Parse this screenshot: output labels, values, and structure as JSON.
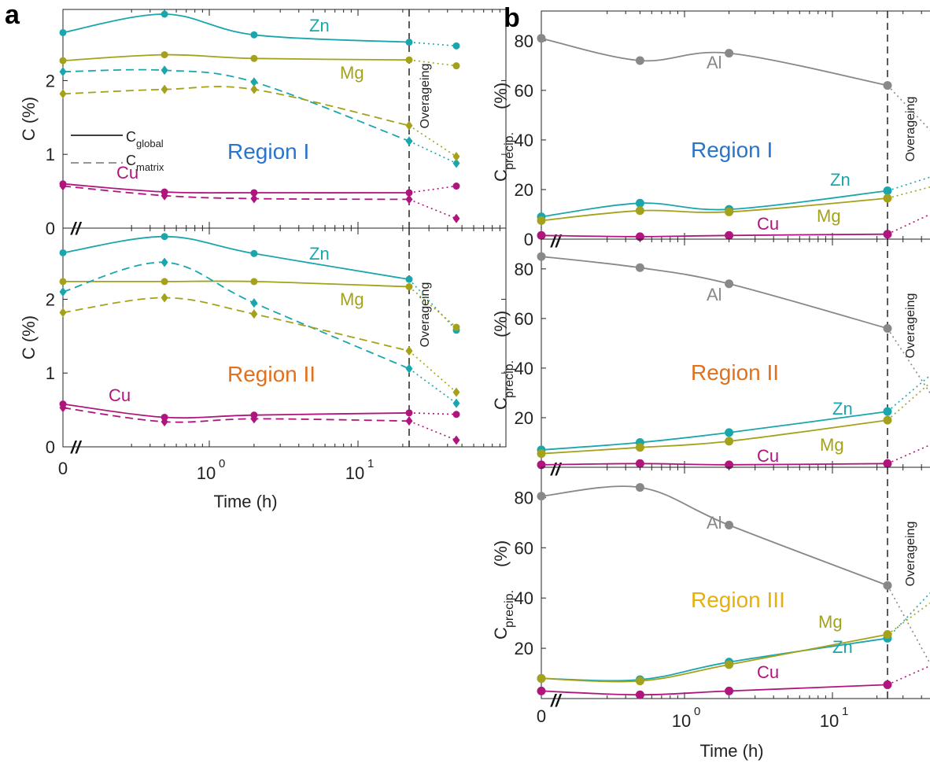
{
  "colors": {
    "Zn": "#1aa6ad",
    "Mg": "#a3a21a",
    "Cu": "#b0157d",
    "Al": "#888888",
    "region_I": "#2a74c9",
    "region_II": "#e0711e",
    "region_III": "#e8b00a"
  },
  "panel_a": {
    "letter": "a",
    "ylabel": "C (%)",
    "xlabel": "Time (h)",
    "break_mark": "//",
    "overageing_label": "Overageing",
    "legend": {
      "global": "C",
      "global_sub": "global",
      "matrix": "C",
      "matrix_sub": "matrix"
    },
    "yticks": [
      "0",
      "1",
      "2"
    ],
    "xticks": [
      "0",
      "10",
      "10"
    ],
    "xtick_sup": [
      "",
      "0",
      "1"
    ]
  },
  "panel_b": {
    "letter": "b",
    "ylabel": "C",
    "ylabel_sub": "precip.",
    "ylabel_unit": "(%)",
    "xlabel": "Time (h)",
    "break_mark": "//",
    "overageing_label": "Overageing",
    "yticks_top": [
      "0",
      "20",
      "40",
      "60",
      "80"
    ],
    "yticks": [
      "20",
      "40",
      "60",
      "80"
    ],
    "xticks": [
      "0",
      "10",
      "10"
    ],
    "xtick_sup": [
      "",
      "0",
      "1"
    ]
  },
  "chart_data": [
    {
      "id": "a-region-I",
      "type": "line",
      "region_label": "Region I",
      "region_color_key": "region_I",
      "x_scale": "symlog (0 then log10 hours)",
      "x": [
        0,
        0.5,
        2,
        24,
        48
      ],
      "ylim": [
        0,
        2.9
      ],
      "series": [
        {
          "name": "Zn",
          "kind": "global",
          "values": [
            2.65,
            2.9,
            2.62,
            2.52,
            2.47
          ]
        },
        {
          "name": "Mg",
          "kind": "global",
          "values": [
            2.27,
            2.35,
            2.3,
            2.28,
            2.2
          ]
        },
        {
          "name": "Cu",
          "kind": "global",
          "values": [
            0.6,
            0.49,
            0.48,
            0.48,
            0.57
          ]
        },
        {
          "name": "Zn",
          "kind": "matrix",
          "values": [
            2.12,
            2.14,
            1.98,
            1.18,
            0.88
          ]
        },
        {
          "name": "Mg",
          "kind": "matrix",
          "values": [
            1.82,
            1.88,
            1.88,
            1.39,
            0.97
          ]
        },
        {
          "name": "Cu",
          "kind": "matrix",
          "values": [
            0.57,
            0.44,
            0.4,
            0.39,
            0.13
          ]
        }
      ]
    },
    {
      "id": "a-region-II",
      "type": "line",
      "region_label": "Region II",
      "region_color_key": "region_II",
      "x": [
        0,
        0.5,
        2,
        24,
        48
      ],
      "ylim": [
        0,
        2.9
      ],
      "series": [
        {
          "name": "Zn",
          "kind": "global",
          "values": [
            2.63,
            2.85,
            2.62,
            2.27,
            1.58
          ]
        },
        {
          "name": "Mg",
          "kind": "global",
          "values": [
            2.24,
            2.24,
            2.24,
            2.17,
            1.62
          ]
        },
        {
          "name": "Cu",
          "kind": "global",
          "values": [
            0.58,
            0.4,
            0.43,
            0.46,
            0.44
          ]
        },
        {
          "name": "Zn",
          "kind": "matrix",
          "values": [
            2.1,
            2.5,
            1.95,
            1.06,
            0.59
          ]
        },
        {
          "name": "Mg",
          "kind": "matrix",
          "values": [
            1.82,
            2.02,
            1.8,
            1.3,
            0.74
          ]
        },
        {
          "name": "Cu",
          "kind": "matrix",
          "values": [
            0.53,
            0.34,
            0.38,
            0.35,
            0.09
          ]
        }
      ]
    },
    {
      "id": "b-region-I",
      "type": "line",
      "region_label": "Region I",
      "region_color_key": "region_I",
      "x": [
        0,
        0.5,
        2,
        24,
        48
      ],
      "ylim": [
        0,
        92
      ],
      "series": [
        {
          "name": "Al",
          "values": [
            81,
            72,
            75,
            62,
            44
          ]
        },
        {
          "name": "Zn",
          "values": [
            9,
            14.5,
            12,
            19.5,
            25
          ]
        },
        {
          "name": "Mg",
          "values": [
            7.5,
            11.5,
            11,
            16.5,
            21
          ]
        },
        {
          "name": "Cu",
          "values": [
            1.5,
            1,
            1.5,
            2,
            10
          ]
        }
      ]
    },
    {
      "id": "b-region-II",
      "type": "line",
      "region_label": "Region II",
      "region_color_key": "region_II",
      "x": [
        0,
        0.5,
        2,
        24,
        48
      ],
      "ylim": [
        0,
        92
      ],
      "series": [
        {
          "name": "Al",
          "values": [
            85,
            80.5,
            74,
            56,
            30
          ]
        },
        {
          "name": "Zn",
          "values": [
            7,
            10,
            14,
            22.5,
            37
          ]
        },
        {
          "name": "Mg",
          "values": [
            5.5,
            8,
            10.5,
            19,
            34
          ]
        },
        {
          "name": "Cu",
          "values": [
            1,
            1.5,
            1,
            1.5,
            9
          ]
        }
      ]
    },
    {
      "id": "b-region-III",
      "type": "line",
      "region_label": "Region III",
      "region_color_key": "region_III",
      "x": [
        0,
        0.5,
        2,
        24,
        48
      ],
      "ylim": [
        0,
        92
      ],
      "series": [
        {
          "name": "Al",
          "values": [
            80.5,
            84,
            69,
            45,
            14
          ]
        },
        {
          "name": "Zn",
          "values": [
            8,
            7.5,
            14.5,
            24,
            42
          ]
        },
        {
          "name": "Mg",
          "values": [
            8,
            7,
            13.5,
            25.5,
            38
          ]
        },
        {
          "name": "Cu",
          "values": [
            3,
            1.5,
            3,
            5.5,
            13
          ]
        }
      ]
    }
  ],
  "element_labels": {
    "Zn": "Zn",
    "Mg": "Mg",
    "Cu": "Cu",
    "Al": "Al"
  }
}
